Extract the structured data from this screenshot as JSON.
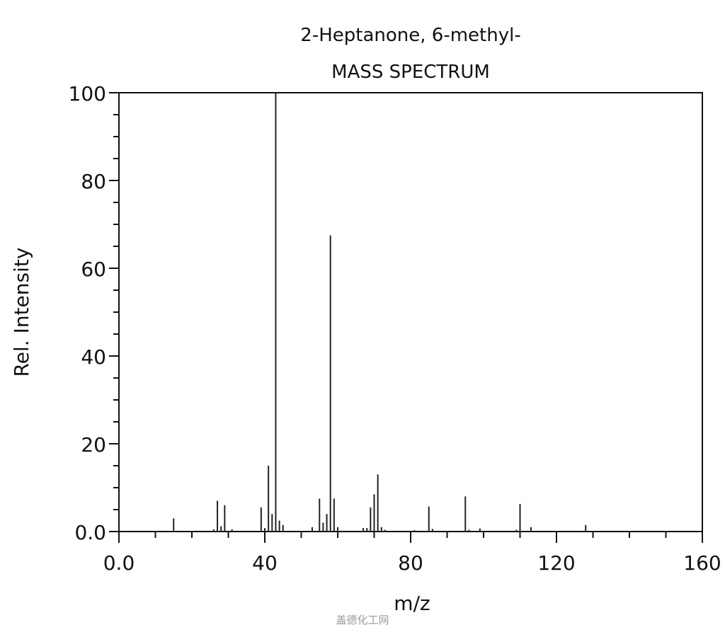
{
  "chart_data": {
    "type": "bar",
    "title": "2-Heptanone, 6-methyl-",
    "subtitle": "MASS SPECTRUM",
    "xlabel": "m/z",
    "ylabel": "Rel. Intensity",
    "xlim": [
      0,
      160
    ],
    "ylim": [
      0,
      100
    ],
    "xticks": [
      0,
      40,
      80,
      120,
      160
    ],
    "xtick_labels": [
      "0.0",
      "40",
      "80",
      "120",
      "160"
    ],
    "yticks": [
      0,
      20,
      40,
      60,
      80,
      100
    ],
    "ytick_labels": [
      "0.0",
      "20",
      "40",
      "60",
      "80",
      "100"
    ],
    "grid": false,
    "peaks": [
      [
        15,
        3.0
      ],
      [
        26,
        0.5
      ],
      [
        27,
        7.0
      ],
      [
        28,
        1.2
      ],
      [
        29,
        6.0
      ],
      [
        31,
        0.5
      ],
      [
        39,
        5.5
      ],
      [
        40,
        0.8
      ],
      [
        41,
        15.0
      ],
      [
        42,
        4.0
      ],
      [
        43,
        100
      ],
      [
        44,
        2.5
      ],
      [
        45,
        1.5
      ],
      [
        53,
        1.0
      ],
      [
        55,
        7.5
      ],
      [
        56,
        2.0
      ],
      [
        57,
        4.0
      ],
      [
        58,
        67.5
      ],
      [
        59,
        7.5
      ],
      [
        60,
        1.0
      ],
      [
        67,
        0.8
      ],
      [
        68,
        0.8
      ],
      [
        69,
        5.5
      ],
      [
        70,
        8.5
      ],
      [
        71,
        13.0
      ],
      [
        72,
        1.0
      ],
      [
        73,
        0.4
      ],
      [
        81,
        0.3
      ],
      [
        85,
        5.7
      ],
      [
        86,
        0.6
      ],
      [
        95,
        8.0
      ],
      [
        96,
        0.4
      ],
      [
        99,
        0.7
      ],
      [
        109,
        0.4
      ],
      [
        110,
        6.3
      ],
      [
        113,
        1.0
      ],
      [
        128,
        1.5
      ]
    ]
  },
  "watermark": "盖德化工网"
}
